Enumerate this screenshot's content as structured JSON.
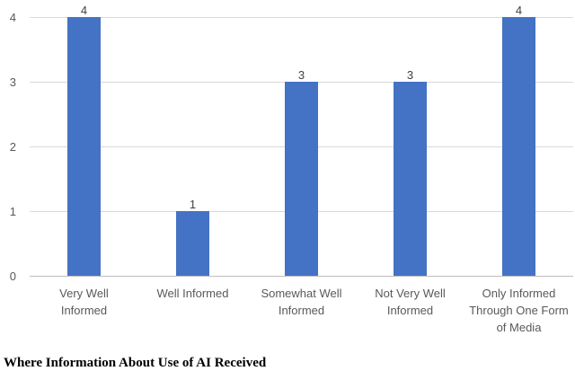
{
  "chart_data": {
    "type": "bar",
    "categories": [
      [
        "Very Well",
        "Informed"
      ],
      [
        "Well Informed"
      ],
      [
        "Somewhat Well",
        "Informed"
      ],
      [
        "Not Very Well",
        "Informed"
      ],
      [
        "Only Informed",
        "Through One Form",
        "of Media"
      ]
    ],
    "values": [
      4,
      1,
      3,
      3,
      4
    ],
    "ylim": [
      0,
      4
    ],
    "yticks": [
      "0",
      "1",
      "2",
      "3",
      "4"
    ],
    "grid": true,
    "title": "",
    "xlabel": "",
    "ylabel": ""
  },
  "colors": {
    "bar": "#4472c4",
    "grid": "#d9d9d9",
    "axis": "#bfbfbf",
    "text": "#595959"
  },
  "caption": "Where Information About Use of AI Received"
}
